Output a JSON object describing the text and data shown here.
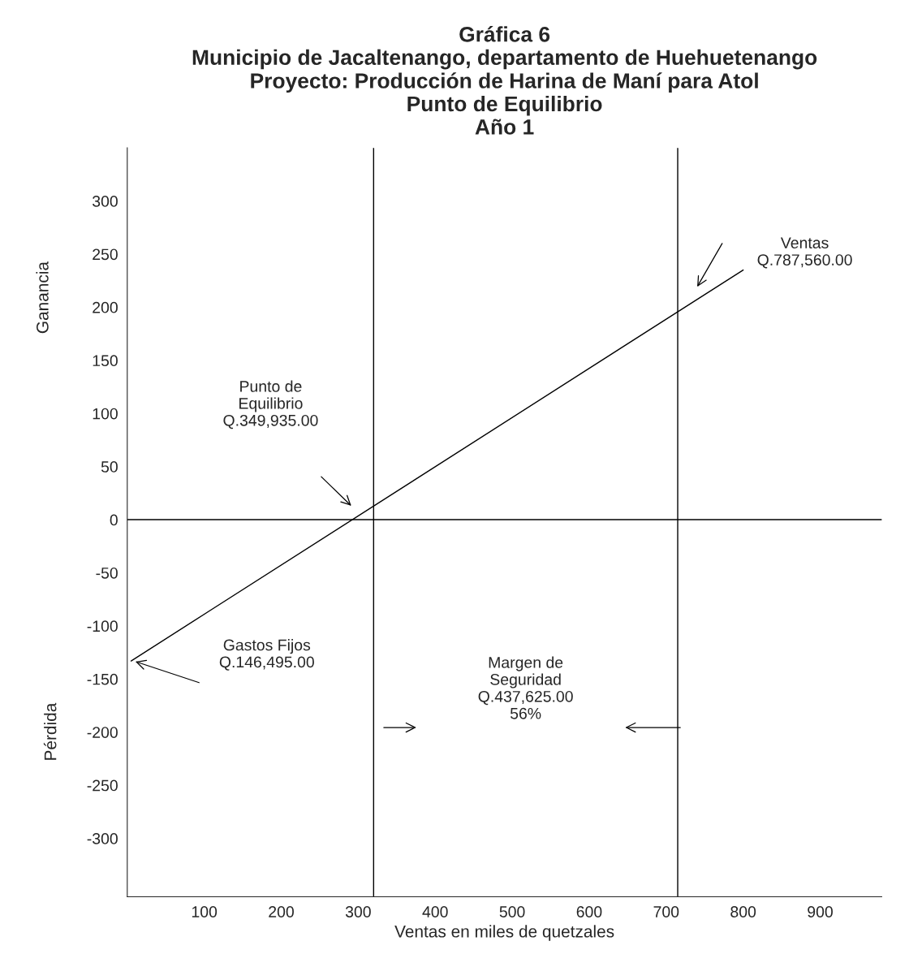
{
  "chart_data": {
    "type": "line",
    "title": "Gráfica 6\nMunicipio de Jacaltenango, departamento de Huehuetenango\nProyecto: Producción de Harina de Maní para Atol\nPunto de Equilibrio\nAño 1",
    "xlabel": "Ventas en miles de quetzales",
    "ylabel": "Ganancia",
    "x": [
      5,
      800
    ],
    "series": [
      {
        "color": "#000000",
        "values": [
          -133,
          235
        ]
      }
    ],
    "xlim": [
      0,
      980
    ],
    "ylim": [
      -355,
      350
    ],
    "xticks": [
      100,
      200,
      300,
      400,
      500,
      600,
      700,
      800,
      900
    ],
    "yticks": [
      -300,
      -250,
      -200,
      -150,
      -100,
      -50,
      0,
      50,
      100,
      150,
      200,
      250,
      300
    ],
    "ref_lines": [
      {
        "axis": "y",
        "value": 0
      },
      {
        "axis": "x",
        "value": 320
      },
      {
        "axis": "x",
        "value": 715
      }
    ],
    "annotations": [
      "Ventas\nQ.787,560.00",
      "Punto de\nEquilibrio\nQ.349,935.00",
      "Gastos Fijos\nQ.146,495.00",
      "Margen de\nSeguridad\nQ.437,625.00\n56%",
      "Pérdida"
    ],
    "grid": false,
    "legend": false,
    "marker": "none",
    "line_style": "solid"
  }
}
